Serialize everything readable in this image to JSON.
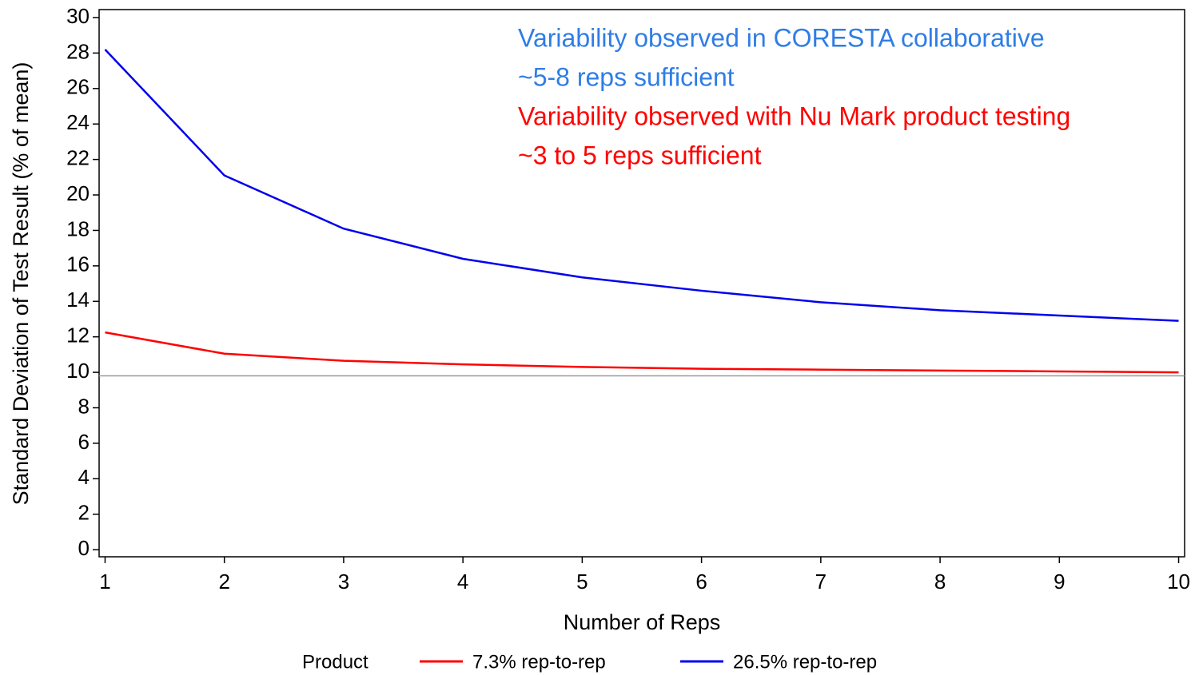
{
  "chart_data": {
    "type": "line",
    "x_label": "Number of Reps",
    "y_label": "Standard Deviation of Test Result (% of mean)",
    "x": [
      1,
      2,
      3,
      4,
      5,
      6,
      7,
      8,
      9,
      10
    ],
    "series": [
      {
        "name": "7.3% rep-to-rep",
        "color": "#ff0000",
        "values": [
          12.25,
          11.05,
          10.65,
          10.45,
          10.3,
          10.2,
          10.15,
          10.1,
          10.05,
          10.0
        ]
      },
      {
        "name": "26.5% rep-to-rep",
        "color": "#0000ee",
        "values": [
          28.2,
          21.1,
          18.1,
          16.4,
          15.35,
          14.6,
          13.95,
          13.5,
          13.2,
          12.9
        ]
      }
    ],
    "reference_line": {
      "value": 9.8,
      "color": "#999999"
    },
    "xlim": [
      0.95,
      10.05
    ],
    "xticks": [
      1,
      2,
      3,
      4,
      5,
      6,
      7,
      8,
      9,
      10
    ],
    "ylim": [
      -0.4,
      30.45
    ],
    "yticks": [
      0,
      2,
      4,
      6,
      8,
      10,
      12,
      14,
      16,
      18,
      20,
      22,
      24,
      26,
      28,
      30
    ],
    "legend_title": "Product",
    "legend_position": "bottom",
    "annotations": [
      {
        "text": "Variability observed in CORESTA collaborative",
        "color": "#2f7de6"
      },
      {
        "text": "~5-8 reps sufficient",
        "color": "#2f7de6"
      },
      {
        "text": "Variability observed with Nu Mark product testing",
        "color": "#ff0000"
      },
      {
        "text": "~3 to 5 reps sufficient",
        "color": "#ff0000"
      }
    ]
  }
}
